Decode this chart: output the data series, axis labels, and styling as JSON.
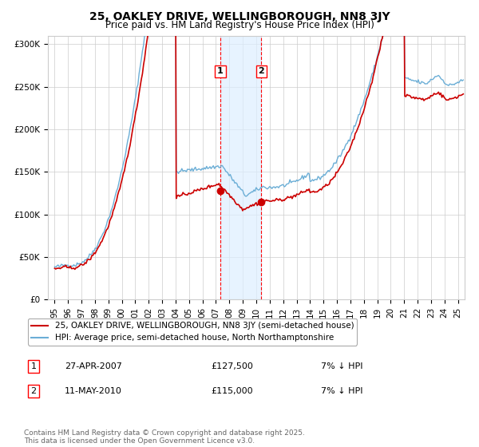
{
  "title": "25, OAKLEY DRIVE, WELLINGBOROUGH, NN8 3JY",
  "subtitle": "Price paid vs. HM Land Registry's House Price Index (HPI)",
  "legend_line1": "25, OAKLEY DRIVE, WELLINGBOROUGH, NN8 3JY (semi-detached house)",
  "legend_line2": "HPI: Average price, semi-detached house, North Northamptonshire",
  "transaction1_date": "27-APR-2007",
  "transaction1_price": "£127,500",
  "transaction1_note": "7% ↓ HPI",
  "transaction2_date": "11-MAY-2010",
  "transaction2_price": "£115,000",
  "transaction2_note": "7% ↓ HPI",
  "footer": "Contains HM Land Registry data © Crown copyright and database right 2025.\nThis data is licensed under the Open Government Licence v3.0.",
  "hpi_color": "#6baed6",
  "price_color": "#cc0000",
  "marker_color": "#cc0000",
  "axvline1_x": 2007.32,
  "axvline2_x": 2010.37,
  "shade_start": 2007.32,
  "shade_end": 2010.37,
  "shade_color": "#ddeeff",
  "ylim_min": 0,
  "ylim_max": 310000,
  "xlim_min": 1994.5,
  "xlim_max": 2025.5,
  "yticks": [
    0,
    50000,
    100000,
    150000,
    200000,
    250000,
    300000
  ],
  "ytick_labels": [
    "£0",
    "£50K",
    "£100K",
    "£150K",
    "£200K",
    "£250K",
    "£300K"
  ],
  "xticks": [
    1995,
    1996,
    1997,
    1998,
    1999,
    2000,
    2001,
    2002,
    2003,
    2004,
    2005,
    2006,
    2007,
    2008,
    2009,
    2010,
    2011,
    2012,
    2013,
    2014,
    2015,
    2016,
    2017,
    2018,
    2019,
    2020,
    2021,
    2022,
    2023,
    2024,
    2025
  ],
  "grid_color": "#cccccc",
  "background_color": "#ffffff",
  "plot_bg_color": "#ffffff",
  "title_fontsize": 10,
  "subtitle_fontsize": 8.5,
  "tick_fontsize": 7.5,
  "legend_fontsize": 7.5,
  "table_fontsize": 8,
  "footer_fontsize": 6.5
}
